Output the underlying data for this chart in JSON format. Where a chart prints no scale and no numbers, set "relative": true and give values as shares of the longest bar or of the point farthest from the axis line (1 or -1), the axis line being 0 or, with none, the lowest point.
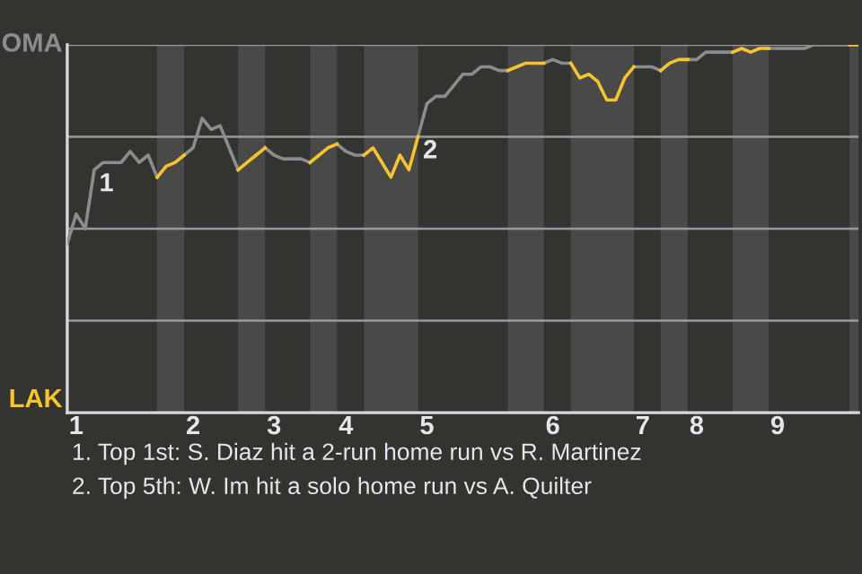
{
  "chart_data": {
    "type": "line",
    "relative": true,
    "categories": [
      null,
      "1",
      null,
      null,
      null,
      null,
      null,
      null,
      null,
      null,
      null,
      null,
      null,
      null,
      "2",
      null,
      null,
      null,
      null,
      null,
      null,
      null,
      null,
      "3",
      null,
      null,
      null,
      null,
      null,
      null,
      null,
      "4",
      null,
      null,
      null,
      null,
      null,
      null,
      null,
      null,
      "5",
      null,
      null,
      null,
      null,
      null,
      null,
      null,
      null,
      null,
      null,
      null,
      null,
      null,
      "6",
      null,
      null,
      null,
      null,
      null,
      null,
      null,
      null,
      null,
      "7",
      null,
      null,
      null,
      null,
      null,
      "8",
      null,
      null,
      null,
      null,
      null,
      null,
      null,
      null,
      "9",
      null,
      null,
      null,
      null,
      null,
      null,
      null,
      null,
      null
    ],
    "grid": "y",
    "marker": "none",
    "line_style": "solid",
    "series": [
      {
        "name": "OMA",
        "color": "#8c8c8c",
        "values": [
          0.46,
          0.54,
          0.5,
          0.66,
          0.68,
          0.68,
          0.68,
          0.71,
          0.68,
          0.7,
          0.64,
          null,
          null,
          0.7,
          0.72,
          0.8,
          0.77,
          0.78,
          0.72,
          0.66,
          null,
          null,
          0.72,
          0.7,
          0.69,
          0.69,
          0.69,
          0.68,
          null,
          null,
          0.73,
          0.71,
          0.7,
          0.7,
          null,
          null,
          null,
          null,
          null,
          0.75,
          0.84,
          0.86,
          0.86,
          0.89,
          0.92,
          0.92,
          0.94,
          0.94,
          0.93,
          0.93,
          null,
          null,
          null,
          0.95,
          0.96,
          0.95,
          0.95,
          null,
          null,
          null,
          null,
          null,
          null,
          0.94,
          0.94,
          0.94,
          0.93,
          null,
          null,
          0.96,
          0.96,
          0.98,
          0.98,
          0.98,
          0.98,
          null,
          null,
          null,
          0.99,
          0.99,
          0.99,
          0.99,
          0.99,
          1,
          1,
          1,
          1,
          1,
          null
        ]
      },
      {
        "name": "LAK",
        "color": "#f5c431",
        "values": [
          null,
          null,
          null,
          null,
          null,
          null,
          null,
          null,
          null,
          null,
          0.64,
          0.67,
          0.68,
          0.7,
          null,
          null,
          null,
          null,
          null,
          0.66,
          0.68,
          0.7,
          0.72,
          null,
          null,
          null,
          null,
          0.68,
          0.7,
          0.72,
          0.73,
          null,
          null,
          0.7,
          0.72,
          0.68,
          0.64,
          0.7,
          0.66,
          0.75,
          null,
          null,
          null,
          null,
          null,
          null,
          null,
          null,
          null,
          0.93,
          0.94,
          0.95,
          0.95,
          0.95,
          null,
          null,
          0.95,
          0.91,
          0.92,
          0.9,
          0.85,
          0.85,
          0.91,
          0.94,
          null,
          null,
          0.93,
          0.95,
          0.96,
          0.96,
          null,
          null,
          null,
          null,
          0.98,
          0.99,
          0.98,
          0.99,
          0.99,
          null,
          null,
          null,
          null,
          null,
          null,
          null,
          null,
          1,
          1
        ]
      }
    ],
    "annotations": [
      "1",
      "2",
      "1. Top 1st: S. Diaz hit a 2-run home run vs R. Martinez",
      "2. Top 5th: W. Im hit a solo home run vs A. Quilter"
    ]
  }
}
